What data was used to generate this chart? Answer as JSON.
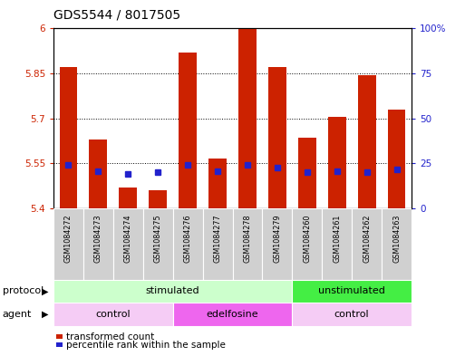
{
  "title": "GDS5544 / 8017505",
  "samples": [
    "GSM1084272",
    "GSM1084273",
    "GSM1084274",
    "GSM1084275",
    "GSM1084276",
    "GSM1084277",
    "GSM1084278",
    "GSM1084279",
    "GSM1084260",
    "GSM1084261",
    "GSM1084262",
    "GSM1084263"
  ],
  "bar_tops": [
    5.87,
    5.63,
    5.47,
    5.46,
    5.92,
    5.565,
    6.0,
    5.87,
    5.635,
    5.705,
    5.845,
    5.73
  ],
  "bar_base": 5.4,
  "blue_values": [
    5.545,
    5.525,
    5.515,
    5.52,
    5.545,
    5.525,
    5.545,
    5.535,
    5.52,
    5.525,
    5.52,
    5.53
  ],
  "ylim": [
    5.4,
    6.0
  ],
  "yticks": [
    5.4,
    5.55,
    5.7,
    5.85,
    6.0
  ],
  "ytick_labels": [
    "5.4",
    "5.55",
    "5.7",
    "5.85",
    "6"
  ],
  "right_yticks": [
    0,
    25,
    50,
    75,
    100
  ],
  "right_ytick_labels": [
    "0",
    "25",
    "50",
    "75",
    "100%"
  ],
  "bar_color": "#cc2200",
  "blue_color": "#2222cc",
  "bar_width": 0.6,
  "protocol_groups": [
    {
      "label": "stimulated",
      "start": 0,
      "end": 8,
      "color": "#ccffcc"
    },
    {
      "label": "unstimulated",
      "start": 8,
      "end": 12,
      "color": "#44ee44"
    }
  ],
  "agent_groups": [
    {
      "label": "control",
      "start": 0,
      "end": 4,
      "color": "#f5ccf5"
    },
    {
      "label": "edelfosine",
      "start": 4,
      "end": 8,
      "color": "#ee66ee"
    },
    {
      "label": "control",
      "start": 8,
      "end": 12,
      "color": "#f5ccf5"
    }
  ],
  "protocol_label": "protocol",
  "agent_label": "agent",
  "legend_red_label": "transformed count",
  "legend_blue_label": "percentile rank within the sample",
  "bg_color": "#ffffff",
  "tick_color_left": "#cc2200",
  "tick_color_right": "#2222cc",
  "title_fontsize": 10,
  "axis_fontsize": 7.5,
  "figsize": [
    5.13,
    3.93
  ],
  "dpi": 100
}
